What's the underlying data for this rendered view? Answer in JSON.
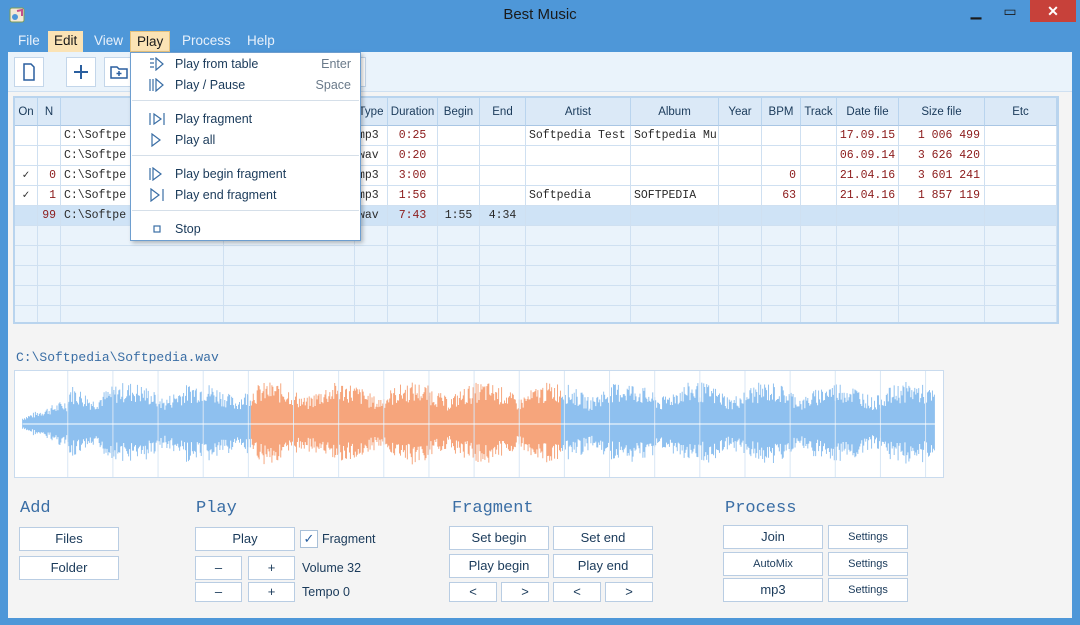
{
  "window": {
    "title": "Best Music"
  },
  "menubar": {
    "items": [
      {
        "label": "File"
      },
      {
        "label": "Edit"
      },
      {
        "label": "View"
      },
      {
        "label": "Play"
      },
      {
        "label": "Process"
      },
      {
        "label": "Help"
      }
    ]
  },
  "play_menu": {
    "items": [
      {
        "label": "Play from table",
        "shortcut": "Enter"
      },
      {
        "label": "Play / Pause",
        "shortcut": "Space"
      },
      {
        "label": "Play fragment",
        "shortcut": ""
      },
      {
        "label": "Play all",
        "shortcut": ""
      },
      {
        "label": "Play begin fragment",
        "shortcut": ""
      },
      {
        "label": "Play end fragment",
        "shortcut": ""
      },
      {
        "label": "Stop",
        "shortcut": ""
      }
    ]
  },
  "table": {
    "headers": [
      "On",
      "N",
      "",
      "",
      "Type",
      "Duration",
      "Begin",
      "End",
      "Artist",
      "Album",
      "Year",
      "BPM",
      "Track",
      "Date file",
      "Size file",
      "Etc"
    ],
    "rows": [
      {
        "on": "",
        "n": "",
        "path": "C:\\Softpe",
        "type": "mp3",
        "duration": "0:25",
        "begin": "",
        "end": "",
        "artist": "Softpedia Test",
        "album": "Softpedia Mu",
        "year": "",
        "bpm": "",
        "track": "",
        "date": "17.09.15",
        "size": "1 006 499"
      },
      {
        "on": "",
        "n": "",
        "path": "C:\\Softpe",
        "type": "wav",
        "duration": "0:20",
        "begin": "",
        "end": "",
        "artist": "",
        "album": "",
        "year": "",
        "bpm": "",
        "track": "",
        "date": "06.09.14",
        "size": "3 626 420"
      },
      {
        "on": "✓",
        "n": "0",
        "path": "C:\\Softpe",
        "type": "mp3",
        "duration": "3:00",
        "begin": "",
        "end": "",
        "artist": "",
        "album": "",
        "year": "",
        "bpm": "0",
        "track": "",
        "date": "21.04.16",
        "size": "3 601 241"
      },
      {
        "on": "✓",
        "n": "1",
        "path": "C:\\Softpe",
        "type": "mp3",
        "duration": "1:56",
        "begin": "",
        "end": "",
        "artist": "Softpedia",
        "album": "SOFTPEDIA",
        "year": "",
        "bpm": "63",
        "track": "",
        "date": "21.04.16",
        "size": "1 857 119"
      },
      {
        "on": "",
        "n": "99",
        "path": "C:\\Softpe",
        "type": "wav",
        "duration": "7:43",
        "begin": "1:55",
        "end": "4:34",
        "artist": "",
        "album": "",
        "year": "",
        "bpm": "",
        "track": "",
        "date": "",
        "size": ""
      }
    ]
  },
  "waveform": {
    "file_path": "C:\\Softpedia\\Softpedia.wav",
    "fragment_start": 0.25,
    "fragment_end": 0.59
  },
  "add_panel": {
    "title": "Add",
    "files_label": "Files",
    "folder_label": "Folder"
  },
  "play_panel": {
    "title": "Play",
    "play_label": "Play",
    "fragment_label": "Fragment",
    "fragment_checked": "✓",
    "minus_label": "–",
    "plus_label": "+",
    "volume_label": "Volume 32",
    "tempo_label": "Tempo 0"
  },
  "fragment_panel": {
    "title": "Fragment",
    "set_begin": "Set begin",
    "set_end": "Set end",
    "play_begin": "Play begin",
    "play_end": "Play end",
    "prev": "<",
    "next": ">"
  },
  "process_panel": {
    "title": "Process",
    "join": "Join",
    "automix": "AutoMix",
    "mp3": "mp3",
    "settings": "Settings"
  },
  "colors": {
    "titlebar": "#4e97d8",
    "accent": "#3a6ea5",
    "fragment": "#f6a57c",
    "wave": "#8ec0ef"
  }
}
